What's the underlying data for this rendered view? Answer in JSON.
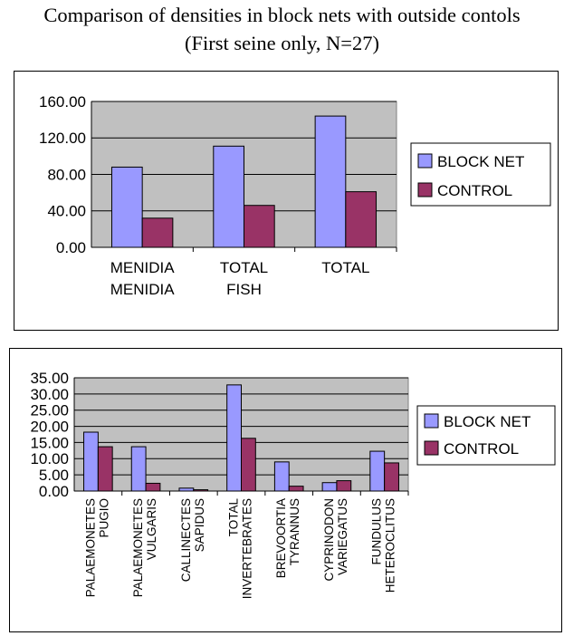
{
  "title_line1": "Comparison of densities in block nets with outside contols",
  "title_line2": "(First seine only, N=27)",
  "colors": {
    "block_net": "#9999ff",
    "control": "#993366",
    "plot_bg": "#c0c0c0"
  },
  "chart_data": [
    {
      "type": "bar",
      "categories": [
        [
          "MENIDIA",
          "MENIDIA"
        ],
        [
          "TOTAL",
          "FISH"
        ],
        [
          "TOTAL"
        ]
      ],
      "series": [
        {
          "name": "BLOCK NET",
          "values": [
            88,
            111,
            144
          ]
        },
        {
          "name": "CONTROL",
          "values": [
            32,
            46,
            61
          ]
        }
      ],
      "ylim": [
        0,
        160
      ],
      "yticks": [
        "0.00",
        "40.00",
        "80.00",
        "120.00",
        "160.00"
      ],
      "grid": true,
      "legend": "right"
    },
    {
      "type": "bar",
      "categories": [
        [
          "PALAEMONETES",
          "PUGIO"
        ],
        [
          "PALAEMONETES",
          "VULGARIS"
        ],
        [
          "CALLINECTES",
          "SAPIDUS"
        ],
        [
          "TOTAL",
          "INVERTEBRATES"
        ],
        [
          "BREVOORTIA",
          "TYRANNUS"
        ],
        [
          "CYPRINODON",
          "VARIEGATUS"
        ],
        [
          "FUNDULUS",
          "HETEROCLITUS"
        ]
      ],
      "series": [
        {
          "name": "BLOCK NET",
          "values": [
            18.2,
            13.7,
            0.9,
            32.8,
            9.0,
            2.6,
            12.3
          ]
        },
        {
          "name": "CONTROL",
          "values": [
            13.7,
            2.4,
            0.4,
            16.3,
            1.5,
            3.2,
            8.7
          ]
        }
      ],
      "ylim": [
        0,
        35
      ],
      "yticks": [
        "0.00",
        "5.00",
        "10.00",
        "15.00",
        "20.00",
        "25.00",
        "30.00",
        "35.00"
      ],
      "grid": true,
      "legend": "right"
    }
  ]
}
